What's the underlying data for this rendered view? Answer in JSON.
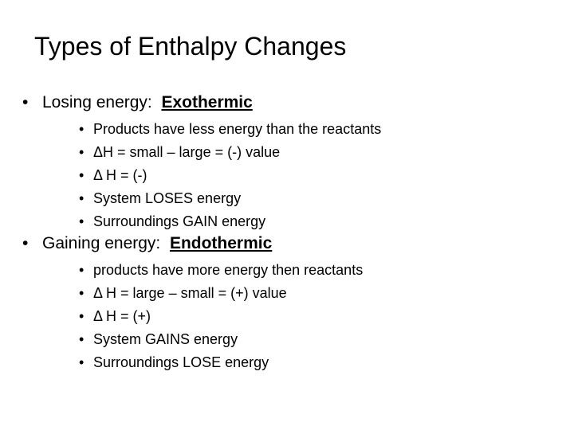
{
  "slide": {
    "title": "Types of Enthalpy Changes",
    "bullet_symbol": "•",
    "sections": [
      {
        "lead": "Losing energy:",
        "term": "Exothermic",
        "points": [
          "Products have less energy than the reactants",
          "ΔH = small – large = (-) value",
          "Δ H = (-)",
          "System LOSES energy",
          "Surroundings GAIN energy"
        ]
      },
      {
        "lead": "Gaining energy:",
        "term": "Endothermic",
        "points": [
          "products have more energy then reactants",
          "Δ H = large – small = (+) value",
          "Δ H = (+)",
          "System GAINS energy",
          "Surroundings LOSE energy"
        ]
      }
    ]
  }
}
